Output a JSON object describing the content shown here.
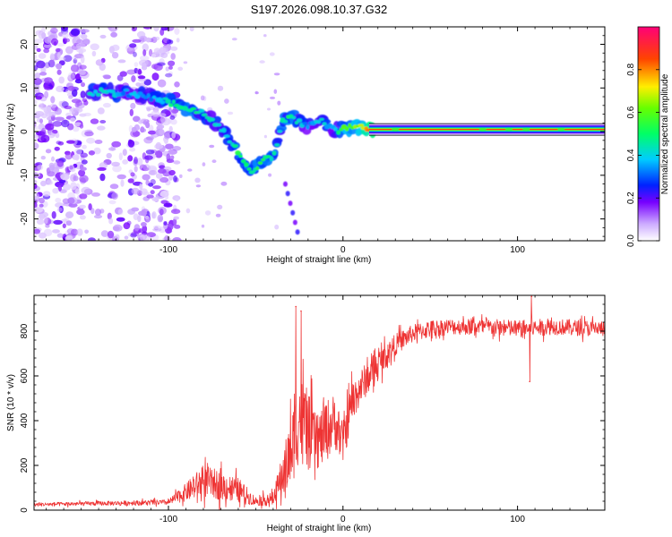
{
  "title": "S197.2026.098.10.37.G32",
  "chart_data": [
    {
      "type": "heatmap",
      "name": "spectrogram",
      "xlabel": "Height of straight line (km)",
      "ylabel": "Frequency (Hz)",
      "xlim": [
        -177,
        150
      ],
      "ylim": [
        -25,
        24
      ],
      "xticks": [
        -100,
        0,
        100
      ],
      "yticks": [
        20,
        10,
        0,
        -10,
        -20
      ],
      "colorbar": {
        "label": "Normalized spectral amplitude",
        "range": [
          0,
          1
        ],
        "ticks": [
          "0.0",
          "0.2",
          "0.4",
          "0.6",
          "0.8"
        ]
      },
      "ridge": {
        "x": [
          -140,
          -125,
          -110,
          -100,
          -90,
          -80,
          -70,
          -60,
          -52,
          -45,
          -40,
          -35,
          -30,
          -25,
          -20,
          -12,
          -5,
          0,
          10,
          20,
          60,
          100,
          150
        ],
        "freq": [
          9,
          9,
          8,
          7,
          5,
          4,
          1,
          -5,
          -9,
          -6,
          -6,
          2,
          4,
          2,
          1,
          3,
          0,
          1,
          1,
          0.5,
          0.5,
          0.5,
          0.5
        ],
        "amp": [
          0.35,
          0.3,
          0.3,
          0.4,
          0.45,
          0.35,
          0.35,
          0.45,
          0.45,
          0.45,
          0.4,
          0.4,
          0.45,
          0.35,
          0.3,
          0.35,
          0.3,
          0.5,
          0.6,
          0.9,
          0.95,
          0.95,
          0.95
        ]
      }
    },
    {
      "type": "line",
      "name": "snr",
      "xlabel": "Height of straight line (km)",
      "ylabel": "SNR (10 * v/v)",
      "xlim": [
        -177,
        150
      ],
      "ylim": [
        0,
        960
      ],
      "xticks": [
        -100,
        0,
        100
      ],
      "yticks": [
        0,
        200,
        400,
        600,
        800
      ],
      "color": "#ee3333",
      "envelope": {
        "x": [
          -177,
          -140,
          -100,
          -90,
          -80,
          -70,
          -60,
          -50,
          -40,
          -30,
          -25,
          -20,
          -15,
          -10,
          -5,
          0,
          5,
          10,
          20,
          30,
          40,
          50,
          60,
          80,
          100,
          120,
          150
        ],
        "mean": [
          25,
          30,
          35,
          80,
          130,
          110,
          90,
          40,
          50,
          250,
          420,
          350,
          300,
          350,
          400,
          300,
          480,
          550,
          650,
          740,
          790,
          810,
          820,
          820,
          810,
          820,
          810
        ],
        "spread": [
          10,
          12,
          15,
          50,
          90,
          80,
          70,
          25,
          40,
          200,
          250,
          220,
          150,
          180,
          150,
          120,
          120,
          100,
          80,
          60,
          50,
          50,
          45,
          45,
          50,
          45,
          45
        ]
      },
      "notable": [
        {
          "x": -27,
          "y": 910
        },
        {
          "x": -24,
          "y": 890
        },
        {
          "x": 107,
          "y": 575
        },
        {
          "x": 108,
          "y": 955
        }
      ]
    }
  ]
}
